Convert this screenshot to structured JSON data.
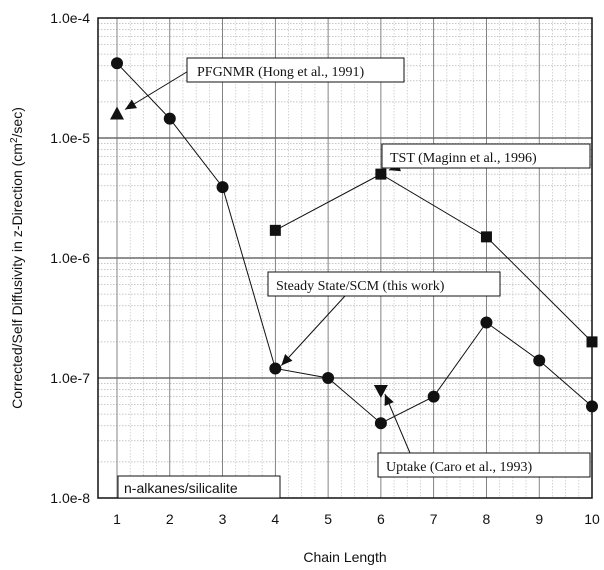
{
  "chart_data": {
    "type": "line",
    "xlabel": "Chain Length",
    "ylabel": "Corrected/Self Diffusivity in z-Direction (cm²/sec)",
    "ylabel_prefix": "Corrected/Self Diffusivity in z-Direction (cm",
    "ylabel_sup": "2",
    "ylabel_suffix": "/sec)",
    "x_ticks": [
      "1",
      "2",
      "3",
      "4",
      "5",
      "6",
      "7",
      "8",
      "9",
      "10"
    ],
    "xlim": [
      1,
      10
    ],
    "yscale": "log",
    "ylim": [
      1e-08,
      0.0001
    ],
    "y_ticks": [
      "1.0e-8",
      "1.0e-7",
      "1.0e-6",
      "1.0e-5",
      "1.0e-4"
    ],
    "grid": true,
    "box_label": "n-alkanes/silicalite",
    "series": [
      {
        "marker": "circle",
        "x": [
          1,
          2,
          3,
          4,
          5,
          6,
          7,
          8,
          9,
          10
        ],
        "values": [
          4.2e-05,
          1.45e-05,
          3.9e-06,
          1.2e-07,
          1e-07,
          4.2e-08,
          7e-08,
          2.9e-07,
          1.4e-07,
          5.8e-08
        ]
      },
      {
        "marker": "square",
        "x": [
          4,
          6,
          8,
          10
        ],
        "values": [
          1.7e-06,
          5e-06,
          1.5e-06,
          2e-07
        ]
      },
      {
        "marker": "triangle-up",
        "x": [
          1
        ],
        "values": [
          1.6e-05
        ]
      },
      {
        "marker": "triangle-down",
        "x": [
          6
        ],
        "values": [
          7.8e-08
        ]
      }
    ],
    "annotations": [
      {
        "text": "PFGNMR (Hong et al., 1991)",
        "target_x": 1,
        "target_y": 1.6e-05
      },
      {
        "text": "TST (Maginn et al., 1996)",
        "target_x": 6,
        "target_y": 5e-06
      },
      {
        "text": "Steady State/SCM (this work)",
        "target_x": 4,
        "target_y": 1.2e-07
      },
      {
        "text": "Uptake (Caro et al., 1993)",
        "target_x": 6,
        "target_y": 7.8e-08
      }
    ]
  }
}
